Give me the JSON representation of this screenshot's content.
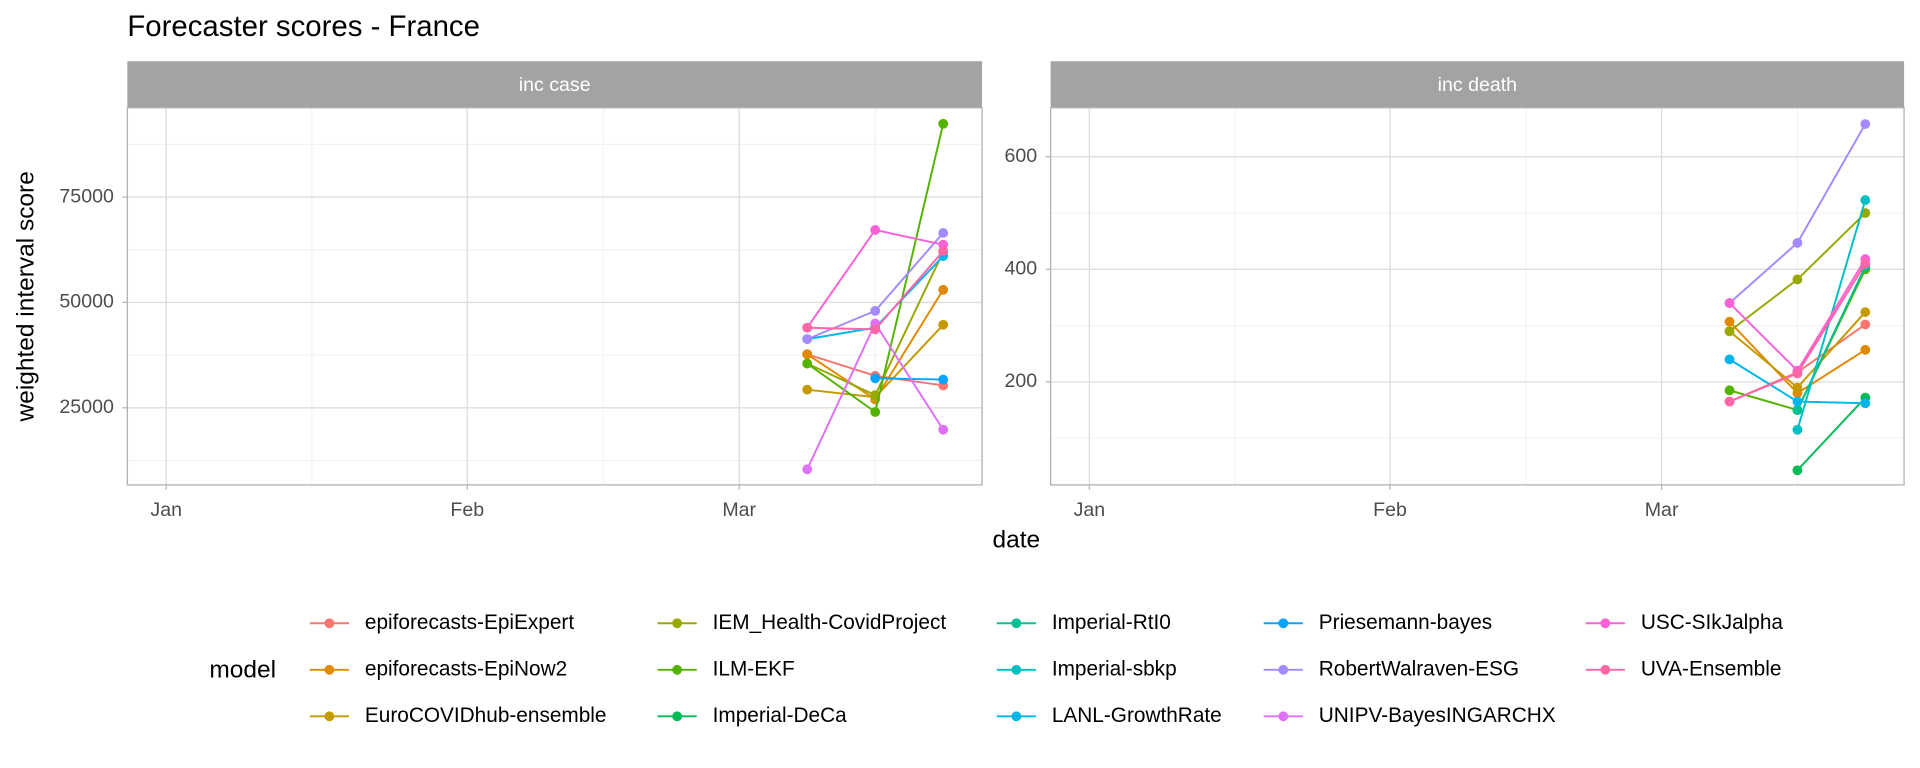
{
  "title": "Forecaster scores - France",
  "x_label": "date",
  "y_label": "weighted interval score",
  "legend": {
    "title": "model",
    "position": "bottom"
  },
  "chart_data": [
    {
      "type": "line",
      "strip": "inc case",
      "x": [
        "03-08",
        "03-15",
        "03-22"
      ],
      "xlim": [
        "12-28",
        "03-26"
      ],
      "xticks": [
        {
          "value": "01-01",
          "label": "Jan"
        },
        {
          "value": "02-01",
          "label": "Feb"
        },
        {
          "value": "03-01",
          "label": "Mar"
        }
      ],
      "xminor": [
        "01-16",
        "02-15",
        "03-15"
      ],
      "ylim": [
        6700,
        96200
      ],
      "yticks": [
        25000,
        50000,
        75000
      ],
      "yminor": [
        12500,
        37500,
        62500,
        87500
      ],
      "grid": true,
      "series": [
        {
          "name": "epiforecasts-EpiExpert",
          "color": "#F8766D",
          "values": [
            37700,
            32600,
            30300
          ]
        },
        {
          "name": "epiforecasts-EpiNow2",
          "color": "#E38900",
          "values": [
            37700,
            27000,
            53000
          ]
        },
        {
          "name": "EuroCOVIDhub-ensemble",
          "color": "#C49A00",
          "values": [
            29300,
            27500,
            44700
          ]
        },
        {
          "name": "IEM_Health-CovidProject",
          "color": "#99A800",
          "values": [
            35500,
            28000,
            62000
          ]
        },
        {
          "name": "ILM-EKF",
          "color": "#53B400",
          "values": [
            35500,
            24000,
            92400
          ]
        },
        {
          "name": "Imperial-DeCa",
          "color": "#00BC56",
          "values": [
            null,
            null,
            null
          ]
        },
        {
          "name": "Imperial-RtI0",
          "color": "#00C094",
          "values": [
            null,
            null,
            null
          ]
        },
        {
          "name": "Imperial-sbkp",
          "color": "#00BFC4",
          "values": [
            null,
            null,
            null
          ]
        },
        {
          "name": "LANL-GrowthRate",
          "color": "#00B6EB",
          "values": [
            41300,
            44000,
            61000
          ]
        },
        {
          "name": "Priesemann-bayes",
          "color": "#06A4FF",
          "values": [
            null,
            32000,
            31700
          ]
        },
        {
          "name": "RobertWalraven-ESG",
          "color": "#A58AFF",
          "values": [
            41300,
            48000,
            66500
          ]
        },
        {
          "name": "UNIPV-BayesINGARCHX",
          "color": "#DF70F8",
          "values": [
            10400,
            45000,
            19800
          ]
        },
        {
          "name": "USC-SIkJalpha",
          "color": "#FB61D7",
          "values": [
            44000,
            67200,
            63700
          ]
        },
        {
          "name": "UVA-Ensemble",
          "color": "#FF66A8",
          "values": [
            44000,
            43600,
            62200
          ]
        }
      ]
    },
    {
      "type": "line",
      "strip": "inc death",
      "x": [
        "03-08",
        "03-15",
        "03-22"
      ],
      "xlim": [
        "12-28",
        "03-26"
      ],
      "xticks": [
        {
          "value": "01-01",
          "label": "Jan"
        },
        {
          "value": "02-01",
          "label": "Feb"
        },
        {
          "value": "03-01",
          "label": "Mar"
        }
      ],
      "xminor": [
        "01-16",
        "02-15",
        "03-15"
      ],
      "ylim": [
        17,
        687
      ],
      "yticks": [
        200,
        400,
        600
      ],
      "yminor": [
        100,
        300,
        500
      ],
      "grid": true,
      "series": [
        {
          "name": "epiforecasts-EpiExpert",
          "color": "#F8766D",
          "values": [
            165,
            217,
            302
          ]
        },
        {
          "name": "epiforecasts-EpiNow2",
          "color": "#E38900",
          "values": [
            307,
            180,
            257
          ]
        },
        {
          "name": "EuroCOVIDhub-ensemble",
          "color": "#C49A00",
          "values": [
            290,
            190,
            324
          ]
        },
        {
          "name": "IEM_Health-CovidProject",
          "color": "#99A800",
          "values": [
            290,
            382,
            500
          ]
        },
        {
          "name": "ILM-EKF",
          "color": "#53B400",
          "values": [
            185,
            150,
            400
          ]
        },
        {
          "name": "Imperial-DeCa",
          "color": "#00BC56",
          "values": [
            null,
            43,
            172
          ]
        },
        {
          "name": "Imperial-RtI0",
          "color": "#00C094",
          "values": [
            null,
            150,
            405
          ]
        },
        {
          "name": "Imperial-sbkp",
          "color": "#00BFC4",
          "values": [
            null,
            115,
            523
          ]
        },
        {
          "name": "LANL-GrowthRate",
          "color": "#00B6EB",
          "values": [
            240,
            165,
            162
          ]
        },
        {
          "name": "Priesemann-bayes",
          "color": "#06A4FF",
          "values": [
            null,
            null,
            null
          ]
        },
        {
          "name": "RobertWalraven-ESG",
          "color": "#A58AFF",
          "values": [
            340,
            447,
            658
          ]
        },
        {
          "name": "UNIPV-BayesINGARCHX",
          "color": "#DF70F8",
          "values": [
            null,
            null,
            null
          ]
        },
        {
          "name": "USC-SIkJalpha",
          "color": "#FB61D7",
          "values": [
            340,
            220,
            418
          ]
        },
        {
          "name": "UVA-Ensemble",
          "color": "#FF66A8",
          "values": [
            165,
            215,
            410
          ]
        }
      ]
    }
  ]
}
